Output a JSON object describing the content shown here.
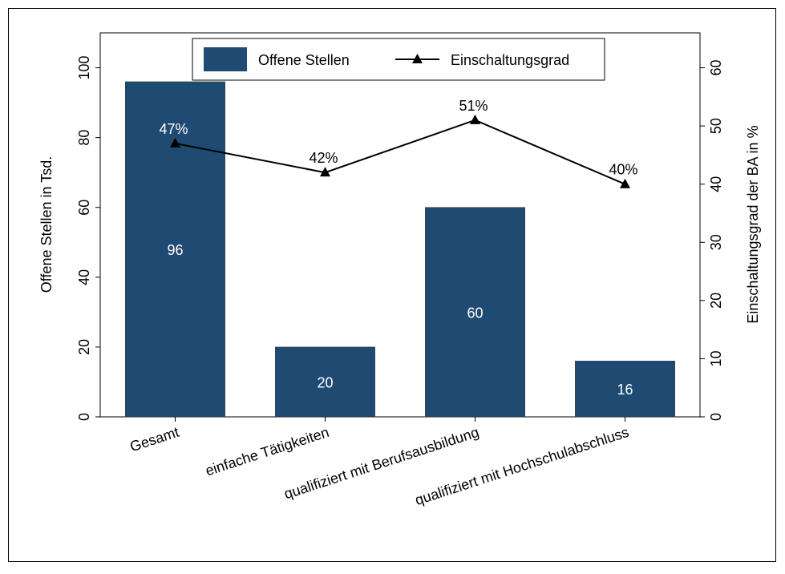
{
  "chart_data": {
    "type": "bar",
    "categories": [
      "Gesamt",
      "einfache Tätigkeiten",
      "qualifiziert mit Berufsausbildung",
      "qualifiziert mit Hochschulabschluss"
    ],
    "series": [
      {
        "name": "Offene Stellen",
        "type": "bar",
        "axis": "left",
        "values": [
          96,
          20,
          60,
          16
        ],
        "value_labels": [
          "96",
          "20",
          "60",
          "16"
        ],
        "color": "#1f4a72"
      },
      {
        "name": "Einschaltungsgrad",
        "type": "line",
        "marker": "triangle",
        "axis": "right",
        "values": [
          47,
          42,
          51,
          40
        ],
        "value_labels": [
          "47%",
          "42%",
          "51%",
          "40%"
        ],
        "color": "#000000"
      }
    ],
    "y_left": {
      "label": "Offene Stellen in Tsd.",
      "range": [
        0,
        110
      ],
      "ticks": [
        0,
        20,
        40,
        60,
        80,
        100
      ],
      "tick_labels": [
        "0",
        "20",
        "40",
        "60",
        "80",
        "100"
      ]
    },
    "y_right": {
      "label": "Einschaltungsgrad der BA in %",
      "range": [
        0,
        66
      ],
      "ticks": [
        0,
        10,
        20,
        30,
        40,
        50,
        60
      ],
      "tick_labels": [
        "0",
        "10",
        "20",
        "30",
        "40",
        "50",
        "60"
      ]
    },
    "grid": false,
    "legend_position": "top-center",
    "bar_value_label_color": "#ffffff",
    "axis_color": "#000000"
  }
}
